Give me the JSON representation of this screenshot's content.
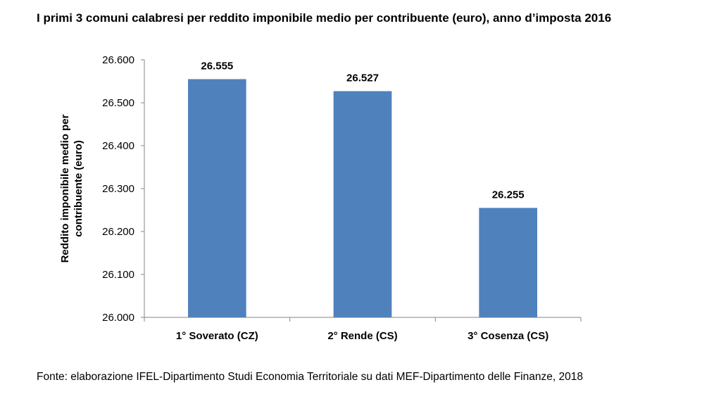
{
  "chart_data": {
    "type": "bar",
    "title": "I primi 3 comuni calabresi per reddito imponibile medio per contribuente (euro), anno d’imposta 2016",
    "ylabel_lines": [
      "Reddito imponibile medio per",
      "contribuente (euro)"
    ],
    "xlabel": "",
    "categories": [
      "1° Soverato (CZ)",
      "2° Rende (CS)",
      "3° Cosenza (CS)"
    ],
    "values": [
      26555,
      26527,
      26255
    ],
    "value_labels": [
      "26.555",
      "26.527",
      "26.255"
    ],
    "ylim": [
      26000,
      26600
    ],
    "yticks": [
      26000,
      26100,
      26200,
      26300,
      26400,
      26500,
      26600
    ],
    "ytick_labels": [
      "26.000",
      "26.100",
      "26.200",
      "26.300",
      "26.400",
      "26.500",
      "26.600"
    ],
    "bar_color": "#4f81bd",
    "grid": false,
    "legend": "none"
  },
  "source": "Fonte: elaborazione IFEL-Dipartimento Studi Economia Territoriale su dati MEF-Dipartimento delle Finanze, 2018"
}
